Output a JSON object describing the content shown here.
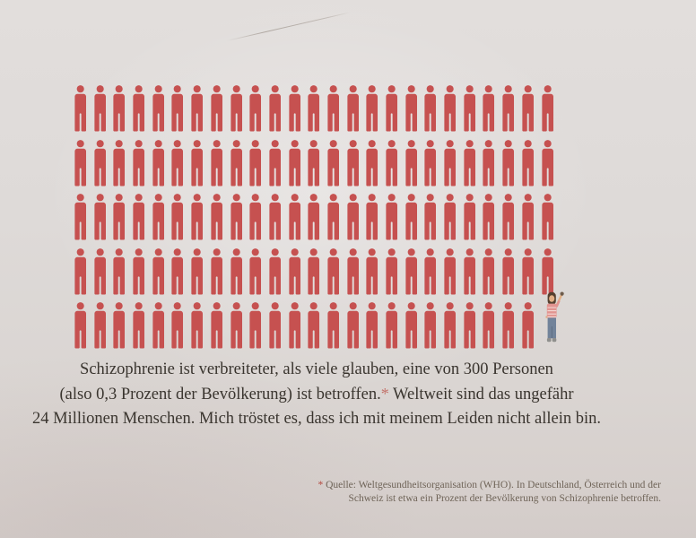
{
  "page": {
    "background_color": "#dedad8",
    "description_of_art": "rows of red person pictograms with one small hand-drawn person raising an arm at the end of the last row"
  },
  "chart_data": {
    "type": "pictogram",
    "icon_color": "#c65150",
    "rows": [
      {
        "red": 25,
        "highlight": false
      },
      {
        "red": 25,
        "highlight": false
      },
      {
        "red": 25,
        "highlight": false
      },
      {
        "red": 25,
        "highlight": false
      },
      {
        "red": 24,
        "highlight": true
      }
    ],
    "red_person_icons": 124,
    "highlighted_figures": 1,
    "total_figures": 125,
    "legend_position": "none",
    "grid": false,
    "statistic": {
      "affected_ratio": "eine von 300 Personen",
      "percent": "0,3 Prozent der Bevölkerung",
      "worldwide_affected": "24 Millionen Menschen"
    },
    "highlight_figure": {
      "name": "hand-drawn-person-raising-arm",
      "hair_color": "#55402f",
      "skin_color": "#e2af85",
      "shirt_color": "#e29490",
      "stripe_color": "#f4d9d4",
      "pants_color": "#72839a",
      "shoe_color": "#8f8f8d"
    }
  },
  "caption": {
    "line1": "Schizophrenie ist verbreiteter, als viele glauben, eine von 300 Personen",
    "line2_before_star": "(also 0,3 Prozent der Bevölkerung) ist betroffen.",
    "line2_star": "*",
    "line2_after_star": " Weltweit sind das ungefähr",
    "line3": "24 Millionen Menschen. Mich tröstet es, dass ich mit meinem Leiden nicht allein bin.",
    "text_color": "#3a352f",
    "star_color": "#c4736c"
  },
  "footnote": {
    "star": "*",
    "line1": "Quelle: Weltgesundheitsorganisation (WHO). In Deutschland, Österreich und der",
    "line2": "Schweiz ist etwa ein Prozent der Bevölkerung von Schizophrenie betroffen.",
    "text_color": "#6f6458",
    "star_color": "#b2463c"
  }
}
